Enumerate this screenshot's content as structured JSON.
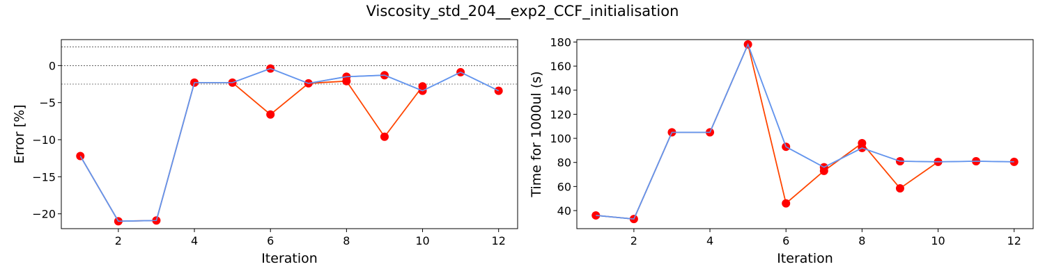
{
  "title": "Viscosity_std_204__exp2_CCF_initialisation",
  "chart_data": [
    {
      "type": "line",
      "xlabel": "Iteration",
      "ylabel": "Error [%]",
      "xlim": [
        0.5,
        12.5
      ],
      "ylim": [
        -22,
        3.5
      ],
      "xticks": [
        2,
        4,
        6,
        8,
        10,
        12
      ],
      "yticks": [
        0,
        -5,
        -10,
        -15,
        -20
      ],
      "reference_lines": [
        2.5,
        0,
        -2.5
      ],
      "x": [
        1,
        2,
        3,
        4,
        5,
        6,
        7,
        8,
        9,
        10,
        11,
        12
      ],
      "series": [
        {
          "color": "#6495ED",
          "values": [
            -12.2,
            -21.0,
            -20.9,
            -2.3,
            -2.3,
            -0.4,
            -2.4,
            -1.5,
            -1.3,
            -3.4,
            -0.9,
            -3.4
          ]
        },
        {
          "color": "#FF4500",
          "values": [
            -12.2,
            -21.0,
            -20.9,
            -2.3,
            -2.3,
            -6.6,
            -2.4,
            -2.1,
            -9.6,
            -2.8,
            null,
            null
          ]
        }
      ],
      "markers": {
        "color": "#FF0000",
        "values": [
          -12.2,
          -21.0,
          -20.9,
          -2.3,
          -2.3,
          -0.4,
          -2.4,
          -1.5,
          -1.3,
          -3.4,
          -0.9,
          -3.4
        ],
        "extra": [
          [
            6,
            -6.6
          ],
          [
            8,
            -2.1
          ],
          [
            9,
            -9.6
          ],
          [
            10,
            -2.8
          ]
        ]
      }
    },
    {
      "type": "line",
      "xlabel": "Iteration",
      "ylabel": "Time for 1000ul (s)",
      "xlim": [
        0.5,
        12.5
      ],
      "ylim": [
        25,
        182
      ],
      "xticks": [
        2,
        4,
        6,
        8,
        10,
        12
      ],
      "yticks": [
        40,
        60,
        80,
        100,
        120,
        140,
        160,
        180
      ],
      "reference_lines": [],
      "x": [
        1,
        2,
        3,
        4,
        5,
        6,
        7,
        8,
        9,
        10,
        11,
        12
      ],
      "series": [
        {
          "color": "#6495ED",
          "values": [
            36,
            33,
            105,
            105,
            178,
            93,
            76,
            92,
            81,
            80.5,
            81,
            80.5
          ]
        },
        {
          "color": "#FF4500",
          "values": [
            36,
            33,
            105,
            105,
            178,
            46,
            73,
            96,
            58.5,
            80.5,
            null,
            null
          ]
        }
      ],
      "markers": {
        "color": "#FF0000",
        "values": [
          36,
          33,
          105,
          105,
          178,
          93,
          76,
          92,
          81,
          80.5,
          81,
          80.5
        ],
        "extra": [
          [
            6,
            46
          ],
          [
            7,
            73
          ],
          [
            8,
            96
          ],
          [
            9,
            58.5
          ]
        ]
      }
    }
  ]
}
